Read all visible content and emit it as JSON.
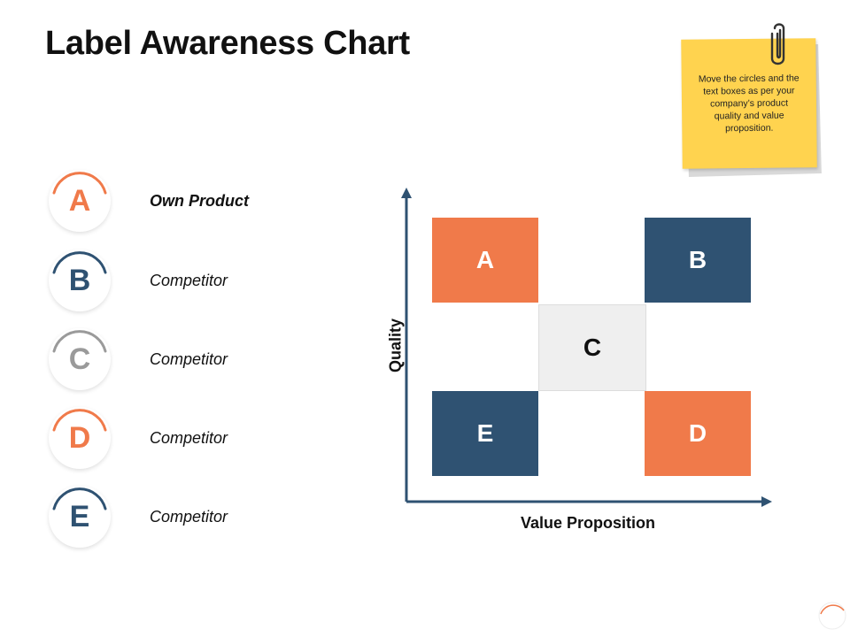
{
  "title": "Label Awareness Chart",
  "note": {
    "text": "Move the circles and the text boxes as per your company’s product quality and value proposition.",
    "color": "#ffd34f"
  },
  "colors": {
    "orange": "#f07a4a",
    "navy": "#2f5272",
    "gray": "#9a9a9a",
    "light_gray": "#efefef",
    "axis": "#2f5272"
  },
  "legend": [
    {
      "letter": "A",
      "label": "Own Product",
      "color": "#f07a4a"
    },
    {
      "letter": "B",
      "label": "Competitor",
      "color": "#2f5272"
    },
    {
      "letter": "C",
      "label": "Competitor",
      "color": "#9a9a9a"
    },
    {
      "letter": "D",
      "label": "Competitor",
      "color": "#f07a4a"
    },
    {
      "letter": "E",
      "label": "Competitor",
      "color": "#2f5272"
    }
  ],
  "matrix": {
    "y_axis_label": "Quality",
    "x_axis_label": "Value Proposition",
    "cells": [
      {
        "letter": "A",
        "col": 0,
        "row": 0,
        "fill": "#f07a4a",
        "text_color": "#ffffff"
      },
      {
        "letter": "B",
        "col": 2,
        "row": 0,
        "fill": "#2f5272",
        "text_color": "#ffffff"
      },
      {
        "letter": "C",
        "col": 1,
        "row": 1,
        "fill": "#efefef",
        "text_color": "#111111"
      },
      {
        "letter": "E",
        "col": 0,
        "row": 2,
        "fill": "#2f5272",
        "text_color": "#ffffff"
      },
      {
        "letter": "D",
        "col": 2,
        "row": 2,
        "fill": "#f07a4a",
        "text_color": "#ffffff"
      }
    ]
  }
}
